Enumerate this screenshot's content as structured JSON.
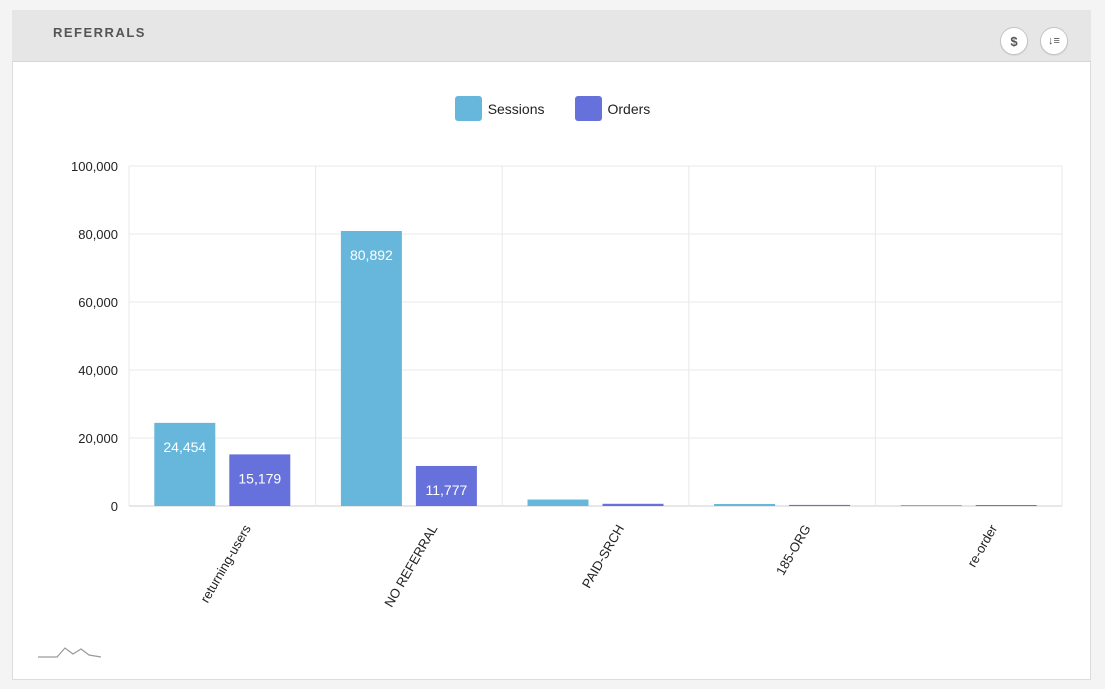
{
  "panel": {
    "title": "REFERRALS",
    "buttons": {
      "currency_label": "$",
      "sort_label": "↓≡"
    }
  },
  "colors": {
    "sessions": "#67b7dc",
    "orders": "#6771dc"
  },
  "chart_data": {
    "type": "bar",
    "categories": [
      "returning-users",
      "NO REFERRAL",
      "PAID-SRCH",
      "185-ORG",
      "re-order"
    ],
    "series": [
      {
        "name": "Sessions",
        "values": [
          24454,
          80892,
          1900,
          600,
          250
        ]
      },
      {
        "name": "Orders",
        "values": [
          15179,
          11777,
          650,
          320,
          180
        ]
      }
    ],
    "data_labels": [
      [
        "24,454",
        "80,892",
        "",
        "",
        ""
      ],
      [
        "15,179",
        "11,777",
        "",
        "",
        ""
      ]
    ],
    "ylim": [
      0,
      100000
    ],
    "yticks": [
      0,
      20000,
      40000,
      60000,
      80000,
      100000
    ],
    "ytick_labels": [
      "0",
      "20,000",
      "40,000",
      "60,000",
      "80,000",
      "100,000"
    ],
    "legend_position": "top",
    "grid": true
  },
  "footer": {
    "icon": "sparkline-icon"
  }
}
